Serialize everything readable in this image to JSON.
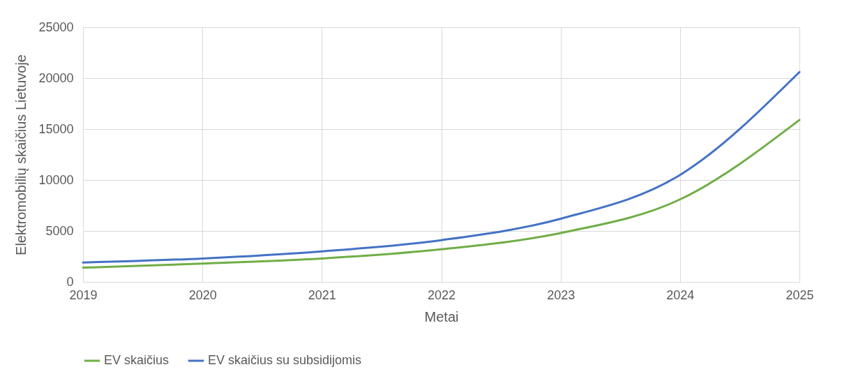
{
  "chart_data": {
    "type": "line",
    "xlabel": "Metai",
    "ylabel": "Elektromobilių skaičius Lietuvoje",
    "x": [
      2019,
      2020,
      2021,
      2022,
      2023,
      2024,
      2025
    ],
    "series": [
      {
        "name": "EV skaičius",
        "color": "#70ad47",
        "values": [
          1400,
          1800,
          2300,
          3200,
          4800,
          8100,
          15900
        ]
      },
      {
        "name": "EV skaičius su subsidijomis",
        "color": "#4472c4",
        "values": [
          1900,
          2300,
          3000,
          4100,
          6200,
          10500,
          20600
        ]
      }
    ],
    "xlim": [
      2019,
      2025
    ],
    "xticks": [
      2019,
      2020,
      2021,
      2022,
      2023,
      2024,
      2025
    ],
    "ylim": [
      0,
      25000
    ],
    "yticks": [
      0,
      5000,
      10000,
      15000,
      20000,
      25000
    ],
    "grid": true,
    "legend": "bottom",
    "marker": "none",
    "line_style": "solid"
  }
}
